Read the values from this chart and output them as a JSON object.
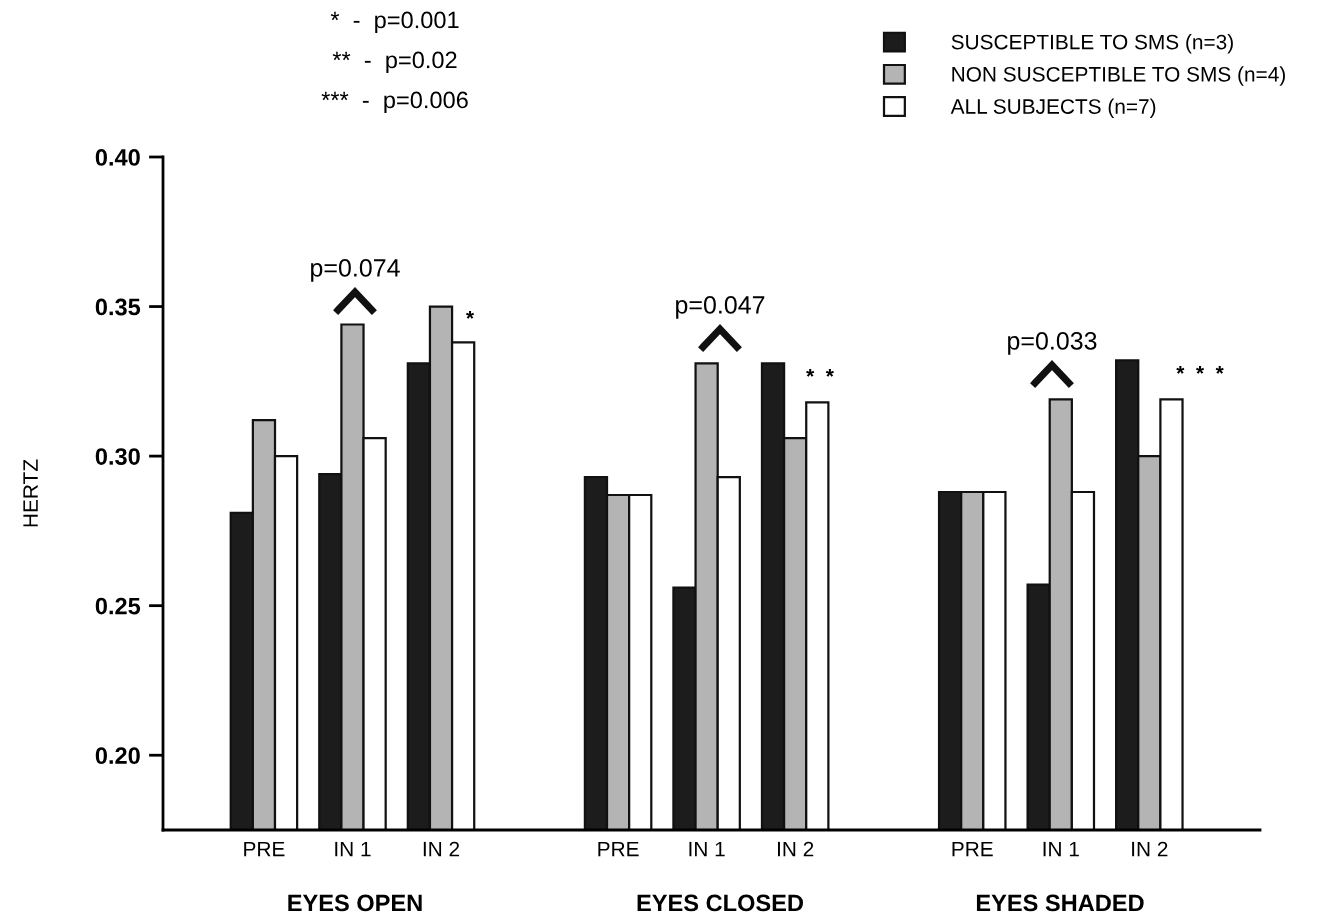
{
  "chart_data": {
    "type": "bar",
    "ylabel": "HERTZ",
    "categories": [
      "PRE",
      "IN 1",
      "IN 2",
      "PRE",
      "IN 1",
      "IN 2",
      "PRE",
      "IN 1",
      "IN 2"
    ],
    "series": [
      {
        "name": "SUSCEPTIBLE TO SMS (n=3)",
        "color": "#1c1c1c",
        "values": [
          0.281,
          0.294,
          0.331,
          0.293,
          0.256,
          0.331,
          0.288,
          0.257,
          0.332
        ]
      },
      {
        "name": "NON SUSCEPTIBLE TO SMS (n=4)",
        "color": "#b4b4b4",
        "values": [
          0.312,
          0.344,
          0.35,
          0.287,
          0.331,
          0.306,
          0.288,
          0.319,
          0.3
        ]
      },
      {
        "name": "ALL SUBJECTS (n=7)",
        "color": "#ffffff",
        "values": [
          0.3,
          0.306,
          0.338,
          0.287,
          0.293,
          0.318,
          0.288,
          0.288,
          0.319
        ]
      }
    ],
    "ylim": [
      0.175,
      0.4
    ],
    "yticks": [
      {
        "value": 0.2,
        "label": "0.20"
      },
      {
        "value": 0.25,
        "label": "0.25"
      },
      {
        "value": 0.3,
        "label": "0.30"
      },
      {
        "value": 0.35,
        "label": "0.35"
      },
      {
        "value": 0.4,
        "label": "0.40"
      }
    ],
    "annotations": [
      "*  -  p=0.001",
      "**  -  p=0.02",
      "***  -  p=0.006",
      "p=0.074",
      "p=0.047",
      "p=0.033",
      "*",
      "*  *",
      "*  *  *",
      "EYES OPEN",
      "EYES CLOSED",
      "EYES SHADED"
    ],
    "legend": "top right",
    "grid": false
  }
}
